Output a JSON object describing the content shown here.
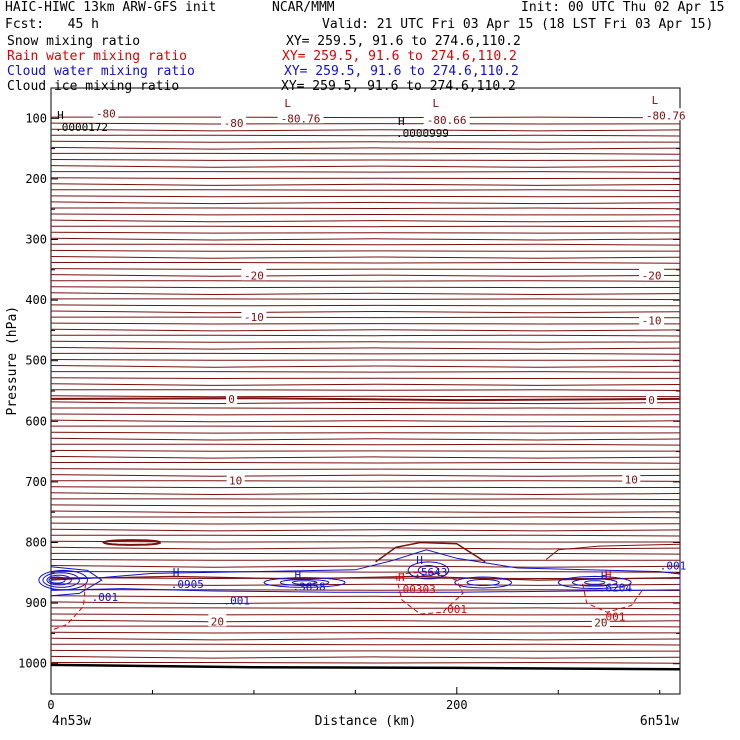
{
  "header": {
    "model": "HAIC-HIWC 13km ARW-GFS init",
    "org": "NCAR/MMM",
    "init": "Init: 00 UTC Thu 02 Apr 15",
    "fcst": "Fcst:   45 h",
    "valid": "Valid: 21 UTC Fri 03 Apr 15 (18 LST Fri 03 Apr 15)",
    "fields": [
      {
        "name": "Snow mixing ratio",
        "xy": "XY= 259.5, 91.6 to 274.6,110.2",
        "color": "#000000"
      },
      {
        "name": "Rain water mixing ratio",
        "xy": "XY= 259.5, 91.6 to 274.6,110.2",
        "color": "#e00000"
      },
      {
        "name": "Cloud water mixing ratio",
        "xy": "XY= 259.5, 91.6 to 274.6,110.2",
        "color": "#1010d0"
      },
      {
        "name": "Cloud ice mixing ratio",
        "xy": "XY= 259.5, 91.6 to 274.6,110.2",
        "color": "#000000"
      }
    ]
  },
  "chart_data": {
    "type": "line",
    "xlabel": "Distance (km)",
    "ylabel": "Pressure (hPa)",
    "xlim": [
      0,
      310
    ],
    "ylim": [
      50,
      1050
    ],
    "x_ticks": [
      0,
      200
    ],
    "y_ticks": [
      100,
      200,
      300,
      400,
      500,
      600,
      700,
      800,
      900,
      1000
    ],
    "x_end_labels": [
      "4n53w",
      "6n51w"
    ],
    "colors": {
      "temperature": "#7a1010",
      "rain": "#e00000",
      "cloud_water": "#1010d0",
      "ice": "#000000",
      "ground": "#000000"
    },
    "isotherm_labels": [
      {
        "text": "-80",
        "x": 27,
        "p": 92
      },
      {
        "text": "-80",
        "x": 90,
        "p": 108
      },
      {
        "text": "-80.76",
        "x": 123,
        "p": 100
      },
      {
        "text": "-80.66",
        "x": 195,
        "p": 103
      },
      {
        "text": "-80.76",
        "x": 303,
        "p": 95
      },
      {
        "text": "-20",
        "x": 100,
        "p": 359
      },
      {
        "text": "-20",
        "x": 296,
        "p": 359
      },
      {
        "text": "-10",
        "x": 100,
        "p": 428
      },
      {
        "text": "-10",
        "x": 296,
        "p": 434
      },
      {
        "text": "0",
        "x": 89,
        "p": 563
      },
      {
        "text": "0",
        "x": 296,
        "p": 565
      },
      {
        "text": "10",
        "x": 91,
        "p": 698
      },
      {
        "text": "10",
        "x": 286,
        "p": 696
      },
      {
        "text": "20",
        "x": 82,
        "p": 930
      },
      {
        "text": "20",
        "x": 271,
        "p": 932
      }
    ],
    "extrema": [
      {
        "mark": "H",
        "value": ".0000172",
        "x": 3,
        "p": 108,
        "series": "ice"
      },
      {
        "mark": "H",
        "value": ".0000999",
        "x": 171,
        "p": 118,
        "series": "ice"
      },
      {
        "mark": "L",
        "value": "",
        "x": 115,
        "p": 88,
        "series": "temperature"
      },
      {
        "mark": "L",
        "value": "",
        "x": 188,
        "p": 88,
        "series": "temperature"
      },
      {
        "mark": "L",
        "value": "",
        "x": 296,
        "p": 83,
        "series": "temperature"
      },
      {
        "mark": "H",
        "value": ".0905",
        "x": 60,
        "p": 862,
        "series": "cloud_water"
      },
      {
        "mark": "H",
        "value": ".3658",
        "x": 120,
        "p": 866,
        "series": "cloud_water"
      },
      {
        "mark": "H",
        "value": ".5643",
        "x": 180,
        "p": 842,
        "series": "cloud_water"
      },
      {
        "mark": "H",
        "value": ".00303",
        "x": 171,
        "p": 870,
        "series": "rain"
      },
      {
        "mark": "H",
        "value": ".6204",
        "x": 271,
        "p": 868,
        "series": "cloud_water"
      },
      {
        "mark": "H",
        "value": "",
        "x": 273,
        "p": 866,
        "series": "rain"
      }
    ],
    "contour_labels": [
      {
        "text": ".001",
        "x": 20,
        "p": 890,
        "series": "cloud_water"
      },
      {
        "text": ".001",
        "x": 85,
        "p": 896,
        "series": "cloud_water"
      },
      {
        "text": ".001",
        "x": 300,
        "p": 838,
        "series": "cloud_water"
      },
      {
        "text": ".001",
        "x": 192,
        "p": 910,
        "series": "rain"
      },
      {
        "text": ".001",
        "x": 270,
        "p": 922,
        "series": "rain"
      }
    ]
  }
}
